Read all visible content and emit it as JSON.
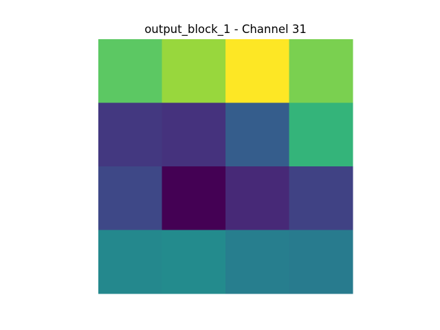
{
  "chart_data": {
    "type": "heatmap",
    "title": "output_block_1 - Channel 31",
    "xlabel": "",
    "ylabel": "",
    "grid": false,
    "axes": "off",
    "colormap": "viridis",
    "rows": 4,
    "cols": 4,
    "values": [
      [
        0.75,
        0.85,
        1.0,
        0.8
      ],
      [
        0.17,
        0.15,
        0.3,
        0.66
      ],
      [
        0.22,
        0.0,
        0.12,
        0.2
      ],
      [
        0.47,
        0.48,
        0.43,
        0.42
      ]
    ]
  }
}
